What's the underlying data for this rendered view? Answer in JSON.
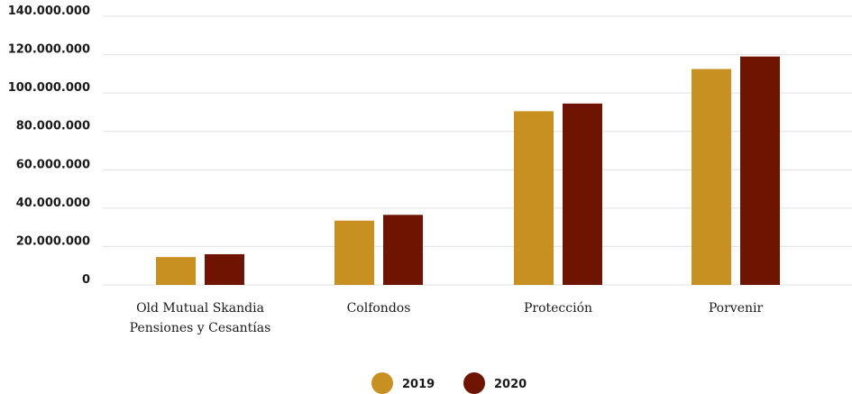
{
  "chart_data": {
    "type": "bar",
    "categories": [
      [
        "Old Mutual Skandia",
        "Pensiones y Cesantías"
      ],
      [
        "Colfondos"
      ],
      [
        "Protección"
      ],
      [
        "Porvenir"
      ]
    ],
    "series": [
      {
        "name": "2019",
        "color": "#C89020",
        "values": [
          14500000,
          33500000,
          90500000,
          112500000
        ]
      },
      {
        "name": "2020",
        "color": "#6E1400",
        "values": [
          16000000,
          36500000,
          94500000,
          119000000
        ]
      }
    ],
    "y_ticks": [
      "0",
      "20.000.000",
      "40.000.000",
      "60.000.000",
      "80.000.000",
      "100.000.000",
      "120.000.000",
      "140.000.000"
    ],
    "ylim": [
      0,
      140000000
    ],
    "grid": true,
    "legend_position": "bottom-center"
  }
}
